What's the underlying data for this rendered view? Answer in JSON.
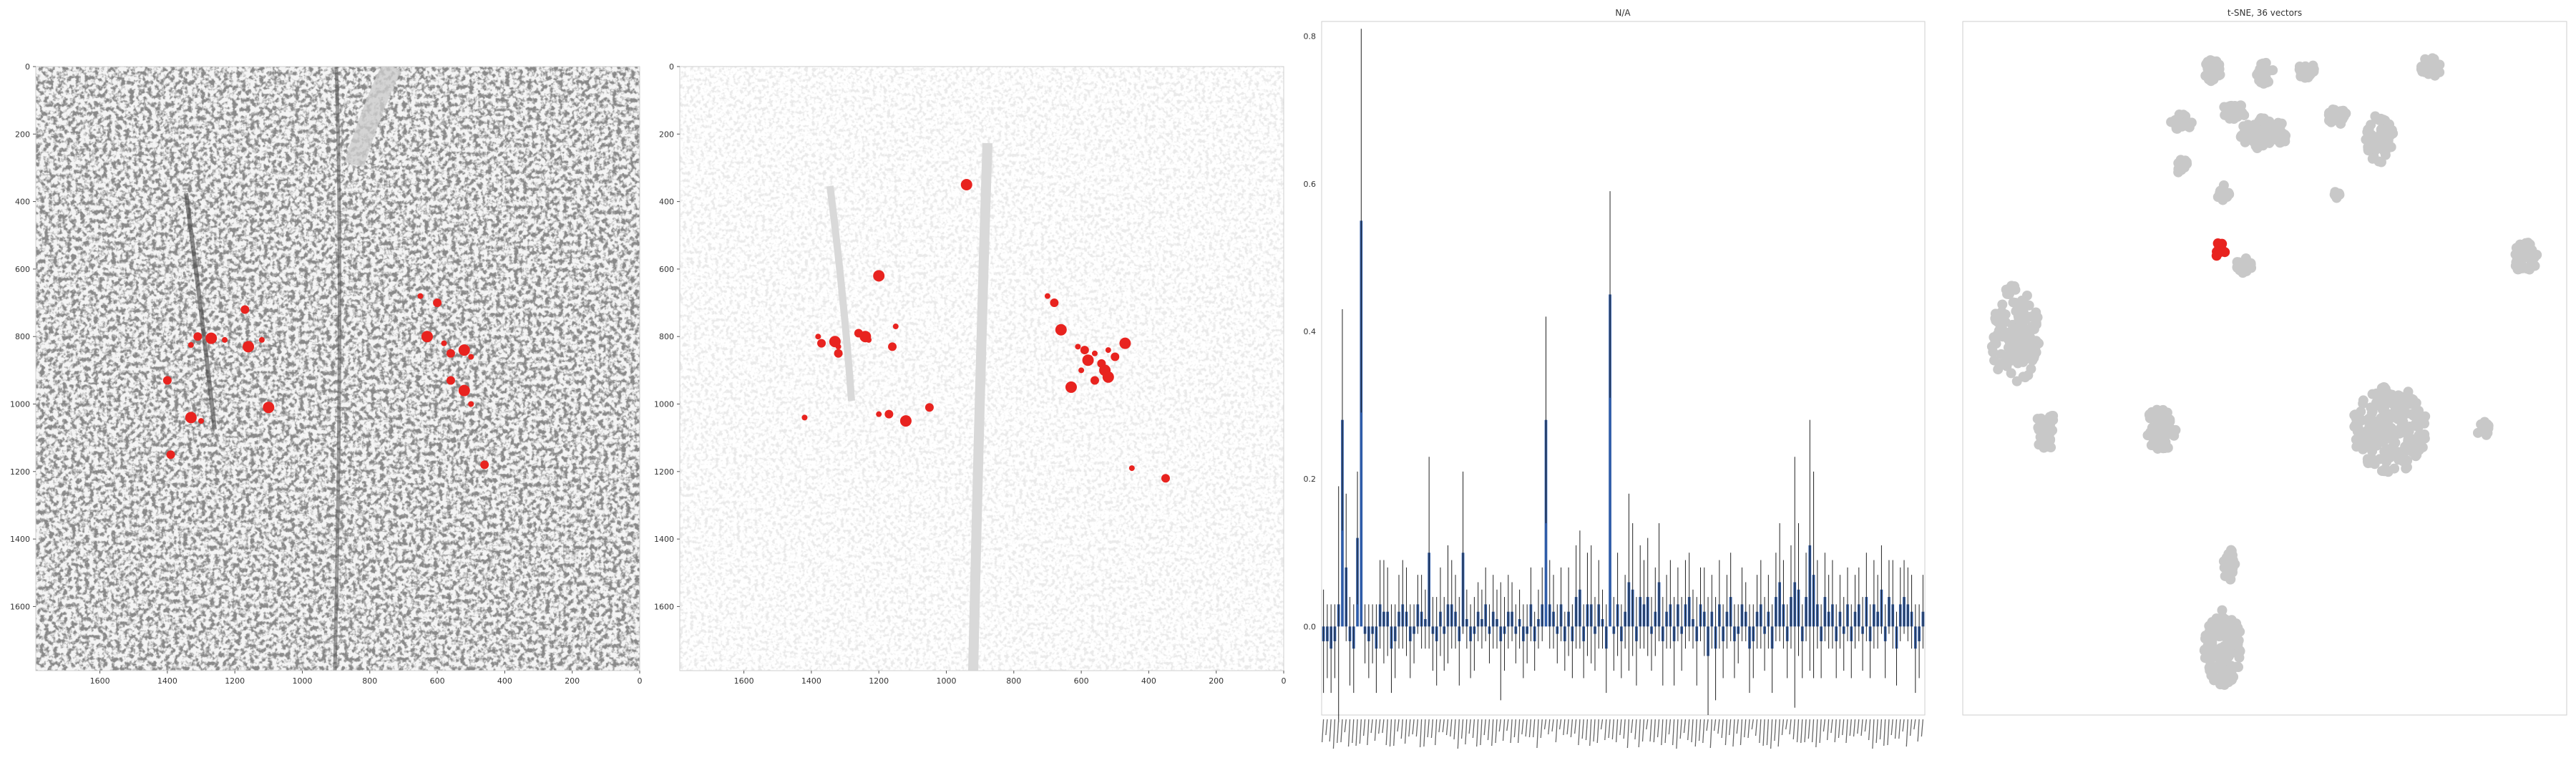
{
  "chart_data": [
    {
      "type": "scatter",
      "title": "",
      "xlabel": "",
      "ylabel": "",
      "xlim": [
        1790,
        0
      ],
      "ylim": [
        1790,
        0
      ],
      "x_ticks": [
        1600,
        1400,
        1200,
        1000,
        800,
        600,
        400,
        200,
        0
      ],
      "y_ticks": [
        0,
        200,
        400,
        600,
        800,
        1000,
        1200,
        1400,
        1600
      ],
      "grid": false,
      "background": "grayscale tissue section image",
      "highlight_color": "#e8231f",
      "highlighted_points": [
        [
          1330,
          825
        ],
        [
          1310,
          800
        ],
        [
          1270,
          805
        ],
        [
          1230,
          810
        ],
        [
          1170,
          720
        ],
        [
          1160,
          830
        ],
        [
          1120,
          810
        ],
        [
          1400,
          930
        ],
        [
          1330,
          1040
        ],
        [
          1300,
          1050
        ],
        [
          1390,
          1150
        ],
        [
          1100,
          1010
        ],
        [
          650,
          680
        ],
        [
          600,
          700
        ],
        [
          630,
          800
        ],
        [
          580,
          820
        ],
        [
          560,
          850
        ],
        [
          520,
          840
        ],
        [
          500,
          860
        ],
        [
          560,
          930
        ],
        [
          520,
          960
        ],
        [
          500,
          1000
        ],
        [
          460,
          1180
        ]
      ]
    },
    {
      "type": "scatter",
      "title": "",
      "xlabel": "",
      "ylabel": "",
      "xlim": [
        1790,
        0
      ],
      "ylim": [
        1790,
        0
      ],
      "x_ticks": [
        1600,
        1400,
        1200,
        1000,
        800,
        600,
        400,
        200,
        0
      ],
      "y_ticks": [
        0,
        200,
        400,
        600,
        800,
        1000,
        1200,
        1400,
        1600
      ],
      "grid": false,
      "background_color": "#d9d9d9",
      "highlight_color": "#e8231f",
      "highlighted_points": [
        [
          1380,
          800
        ],
        [
          1370,
          820
        ],
        [
          1330,
          815
        ],
        [
          1320,
          830
        ],
        [
          1260,
          790
        ],
        [
          1240,
          800
        ],
        [
          1230,
          810
        ],
        [
          1160,
          830
        ],
        [
          1200,
          620
        ],
        [
          1150,
          770
        ],
        [
          1170,
          1030
        ],
        [
          1120,
          1050
        ],
        [
          1200,
          1030
        ],
        [
          1050,
          1010
        ],
        [
          940,
          350
        ],
        [
          700,
          680
        ],
        [
          680,
          700
        ],
        [
          660,
          780
        ],
        [
          610,
          830
        ],
        [
          590,
          840
        ],
        [
          580,
          870
        ],
        [
          560,
          850
        ],
        [
          540,
          880
        ],
        [
          530,
          900
        ],
        [
          520,
          840
        ],
        [
          500,
          860
        ],
        [
          470,
          820
        ],
        [
          600,
          900
        ],
        [
          560,
          930
        ],
        [
          520,
          920
        ],
        [
          450,
          1190
        ],
        [
          350,
          1220
        ],
        [
          630,
          950
        ],
        [
          1420,
          1040
        ],
        [
          1320,
          850
        ]
      ]
    },
    {
      "type": "bar",
      "title": "N/A",
      "xlabel": "",
      "ylabel": "",
      "ylim": [
        -0.12,
        0.82
      ],
      "y_ticks": [
        0.0,
        0.2,
        0.4,
        0.6,
        0.8
      ],
      "grid": false,
      "bar_color": "#2f5ca8",
      "error_color": "#222222",
      "n_bars": 160,
      "values": [
        -0.02,
        -0.02,
        -0.03,
        -0.02,
        0.03,
        0.28,
        0.08,
        -0.02,
        -0.03,
        0.12,
        0.55,
        -0.01,
        -0.02,
        -0.01,
        -0.03,
        0.03,
        0.02,
        0.02,
        -0.03,
        -0.02,
        0.02,
        0.03,
        0.02,
        -0.02,
        -0.01,
        0.03,
        0.02,
        0.01,
        0.1,
        -0.01,
        -0.02,
        0.02,
        -0.01,
        0.03,
        0.03,
        0.02,
        -0.02,
        0.1,
        0.01,
        -0.02,
        -0.01,
        0.02,
        0.01,
        0.03,
        -0.01,
        0.02,
        0.01,
        -0.02,
        -0.01,
        0.02,
        0.02,
        -0.01,
        0.01,
        -0.02,
        -0.01,
        0.03,
        -0.02,
        0.01,
        0.03,
        0.28,
        0.03,
        0.02,
        -0.01,
        0.03,
        -0.02,
        0.02,
        -0.02,
        0.04,
        0.05,
        -0.02,
        0.03,
        0.03,
        -0.01,
        0.03,
        0.01,
        -0.03,
        0.45,
        -0.01,
        0.03,
        -0.02,
        0.02,
        0.06,
        0.05,
        -0.02,
        0.04,
        0.03,
        0.04,
        -0.01,
        0.02,
        0.06,
        -0.02,
        0.02,
        0.03,
        -0.02,
        0.03,
        -0.01,
        0.03,
        0.04,
        0.01,
        -0.02,
        0.03,
        0.02,
        -0.04,
        0.02,
        -0.03,
        0.03,
        -0.02,
        0.02,
        0.04,
        -0.02,
        -0.01,
        0.03,
        0.02,
        -0.03,
        -0.02,
        0.02,
        0.03,
        -0.01,
        0.02,
        -0.03,
        0.04,
        0.06,
        0.03,
        -0.02,
        0.04,
        0.06,
        0.05,
        -0.02,
        0.04,
        0.11,
        0.07,
        0.03,
        -0.02,
        0.04,
        0.02,
        0.03,
        -0.02,
        0.02,
        -0.01,
        0.03,
        -0.02,
        0.02,
        0.03,
        -0.01,
        0.04,
        -0.02,
        0.03,
        0.02,
        0.05,
        -0.02,
        0.04,
        0.03,
        -0.03,
        0.03,
        0.04,
        0.03,
        0.02,
        -0.03,
        -0.02,
        0.02
      ],
      "errors": [
        0.07,
        0.05,
        0.06,
        0.05,
        0.16,
        0.15,
        0.1,
        0.06,
        0.06,
        0.09,
        0.26,
        0.04,
        0.05,
        0.04,
        0.06,
        0.06,
        0.07,
        0.06,
        0.06,
        0.05,
        0.05,
        0.06,
        0.06,
        0.05,
        0.04,
        0.04,
        0.05,
        0.04,
        0.13,
        0.05,
        0.06,
        0.06,
        0.05,
        0.08,
        0.06,
        0.05,
        0.06,
        0.11,
        0.04,
        0.05,
        0.05,
        0.04,
        0.04,
        0.05,
        0.04,
        0.05,
        0.04,
        0.08,
        0.05,
        0.05,
        0.04,
        0.04,
        0.04,
        0.05,
        0.04,
        0.05,
        0.04,
        0.04,
        0.05,
        0.14,
        0.06,
        0.05,
        0.04,
        0.05,
        0.04,
        0.06,
        0.05,
        0.07,
        0.08,
        0.05,
        0.07,
        0.08,
        0.05,
        0.06,
        0.04,
        0.06,
        0.14,
        0.05,
        0.07,
        0.05,
        0.05,
        0.12,
        0.09,
        0.06,
        0.07,
        0.06,
        0.08,
        0.05,
        0.06,
        0.08,
        0.06,
        0.05,
        0.06,
        0.06,
        0.05,
        0.05,
        0.06,
        0.06,
        0.04,
        0.06,
        0.05,
        0.06,
        0.08,
        0.05,
        0.07,
        0.06,
        0.05,
        0.05,
        0.06,
        0.05,
        0.04,
        0.05,
        0.04,
        0.06,
        0.05,
        0.05,
        0.06,
        0.05,
        0.05,
        0.06,
        0.06,
        0.08,
        0.06,
        0.05,
        0.07,
        0.17,
        0.09,
        0.05,
        0.06,
        0.17,
        0.14,
        0.06,
        0.05,
        0.06,
        0.05,
        0.06,
        0.05,
        0.05,
        0.05,
        0.05,
        0.05,
        0.05,
        0.05,
        0.05,
        0.06,
        0.05,
        0.06,
        0.05,
        0.06,
        0.05,
        0.05,
        0.06,
        0.05,
        0.05,
        0.05,
        0.05,
        0.05,
        0.06,
        0.05,
        0.05
      ],
      "category_labels_legible": false
    },
    {
      "type": "scatter",
      "title": "t-SNE, 36 vectors",
      "xlabel": "",
      "ylabel": "",
      "axes_ticks": false,
      "grid": false,
      "point_color": "#c8c8c8",
      "highlight_color": "#e8231f",
      "clusters": [
        {
          "cx": -65,
          "cy": 87,
          "rx": 4,
          "ry": 4,
          "n": 40
        },
        {
          "cx": -40,
          "cy": 86,
          "rx": 4,
          "ry": 4,
          "n": 30
        },
        {
          "cx": -20,
          "cy": 87,
          "rx": 4,
          "ry": 3,
          "n": 30
        },
        {
          "cx": 40,
          "cy": 88,
          "rx": 5,
          "ry": 4,
          "n": 30
        },
        {
          "cx": -55,
          "cy": 72,
          "rx": 6,
          "ry": 3,
          "n": 30
        },
        {
          "cx": -5,
          "cy": 70,
          "rx": 5,
          "ry": 3,
          "n": 30
        },
        {
          "cx": -80,
          "cy": 68,
          "rx": 5,
          "ry": 3,
          "n": 30
        },
        {
          "cx": -40,
          "cy": 64,
          "rx": 12,
          "ry": 6,
          "n": 70
        },
        {
          "cx": 15,
          "cy": 62,
          "rx": 7,
          "ry": 9,
          "n": 60
        },
        {
          "cx": -80,
          "cy": 52,
          "rx": 3,
          "ry": 3,
          "n": 15
        },
        {
          "cx": -60,
          "cy": 42,
          "rx": 3,
          "ry": 3,
          "n": 10
        },
        {
          "cx": -5,
          "cy": 42,
          "rx": 2,
          "ry": 2,
          "n": 8
        },
        {
          "cx": -50,
          "cy": 15,
          "rx": 4,
          "ry": 3,
          "n": 25
        },
        {
          "cx": 85,
          "cy": 18,
          "rx": 6,
          "ry": 6,
          "n": 40
        },
        {
          "cx": -160,
          "cy": -10,
          "rx": 12,
          "ry": 18,
          "n": 130
        },
        {
          "cx": -145,
          "cy": -45,
          "rx": 5,
          "ry": 8,
          "n": 40
        },
        {
          "cx": -90,
          "cy": -45,
          "rx": 8,
          "ry": 8,
          "n": 60
        },
        {
          "cx": 20,
          "cy": -45,
          "rx": 18,
          "ry": 16,
          "n": 200
        },
        {
          "cx": 65,
          "cy": -45,
          "rx": 3,
          "ry": 3,
          "n": 15
        },
        {
          "cx": -60,
          "cy": -125,
          "rx": 9,
          "ry": 14,
          "n": 130
        },
        {
          "cx": -57,
          "cy": -95,
          "rx": 3,
          "ry": 6,
          "n": 25
        }
      ],
      "highlight_cluster": {
        "cx": -62,
        "cy": 21,
        "rx": 3,
        "ry": 3,
        "n": 12
      },
      "xlim": [
        -185,
        105
      ],
      "ylim": [
        -150,
        105
      ]
    }
  ]
}
